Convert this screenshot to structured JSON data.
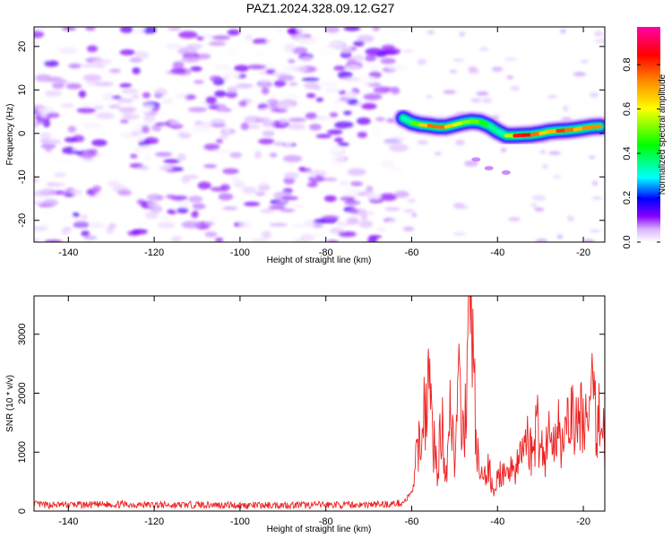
{
  "title": "PAZ1.2024.328.09.12.G27",
  "chart_data": [
    {
      "type": "heatmap",
      "xlabel": "Height of straight line (km)",
      "ylabel": "Frequency (Hz)",
      "xlim": [
        -148,
        -15
      ],
      "ylim": [
        -25,
        24.5
      ],
      "xticks": [
        -140,
        -120,
        -100,
        -80,
        -60,
        -40,
        -20
      ],
      "yticks": [
        -20,
        -10,
        0,
        10,
        20
      ],
      "colorbar": {
        "label": "Normalized spectral amplitude",
        "range": [
          0,
          0.97
        ],
        "ticks": [
          0.0,
          0.2,
          0.4,
          0.6,
          0.8
        ],
        "colors": [
          "#ffffff",
          "#d9b3ff",
          "#8800ff",
          "#0000ff",
          "#00ffff",
          "#00ff00",
          "#ffff00",
          "#ff8800",
          "#ff0000",
          "#ff00aa"
        ]
      },
      "signal_ridge": {
        "x": [
          -62,
          -60,
          -58,
          -56,
          -54,
          -52,
          -50,
          -48,
          -46,
          -44,
          -42,
          -40,
          -38,
          -36,
          -34,
          -32,
          -30,
          -28,
          -26,
          -24,
          -22,
          -20,
          -18,
          -16
        ],
        "y": [
          3.5,
          2.5,
          2.0,
          1.8,
          1.5,
          1.5,
          2.0,
          2.5,
          2.8,
          2.6,
          1.8,
          0.5,
          -0.5,
          -0.5,
          -0.4,
          -0.3,
          0.0,
          0.4,
          0.6,
          0.7,
          0.9,
          1.2,
          1.5,
          1.6
        ],
        "amplitude": [
          0.25,
          0.4,
          0.6,
          0.7,
          0.8,
          0.7,
          0.6,
          0.55,
          0.5,
          0.5,
          0.4,
          0.3,
          0.35,
          0.75,
          0.9,
          0.8,
          0.7,
          0.6,
          0.75,
          0.85,
          0.65,
          0.7,
          0.75,
          0.7
        ]
      },
      "noise_region_x": [
        -148,
        -62
      ],
      "noise_amplitude_range": [
        0.0,
        0.15
      ]
    },
    {
      "type": "line",
      "xlabel": "Height of straight line (km)",
      "ylabel": "SNR (10 * v/v)",
      "xlim": [
        -148,
        -15
      ],
      "ylim": [
        0,
        3650
      ],
      "xticks": [
        -140,
        -120,
        -100,
        -80,
        -60,
        -40,
        -20
      ],
      "yticks": [
        0,
        1000,
        2000,
        3000
      ],
      "series": [
        {
          "color": "#ee2222",
          "x": [
            -148,
            -145,
            -140,
            -135,
            -130,
            -125,
            -120,
            -115,
            -110,
            -105,
            -100,
            -95,
            -90,
            -85,
            -80,
            -75,
            -70,
            -65,
            -62,
            -60,
            -59,
            -58,
            -57,
            -56,
            -55,
            -54,
            -53,
            -52,
            -51,
            -50,
            -49,
            -48,
            -47,
            -46,
            -45,
            -44,
            -43,
            -42,
            -41,
            -40,
            -39,
            -38,
            -37,
            -36,
            -35,
            -34,
            -33,
            -32,
            -31,
            -30,
            -29,
            -28,
            -27,
            -26,
            -25,
            -24,
            -23,
            -22,
            -21,
            -20,
            -19,
            -18,
            -17,
            -16,
            -15
          ],
          "y": [
            120,
            100,
            110,
            105,
            115,
            110,
            105,
            100,
            110,
            105,
            100,
            95,
            105,
            100,
            110,
            105,
            110,
            120,
            140,
            300,
            800,
            1300,
            1700,
            2250,
            1200,
            700,
            1500,
            600,
            1900,
            900,
            2000,
            1100,
            2700,
            3550,
            1200,
            500,
            600,
            700,
            400,
            500,
            700,
            450,
            900,
            650,
            800,
            1100,
            1300,
            900,
            1500,
            1200,
            900,
            1400,
            1000,
            1600,
            1250,
            1100,
            1900,
            1300,
            1500,
            1700,
            1400,
            1900,
            1500,
            1700,
            1100
          ]
        }
      ]
    }
  ]
}
